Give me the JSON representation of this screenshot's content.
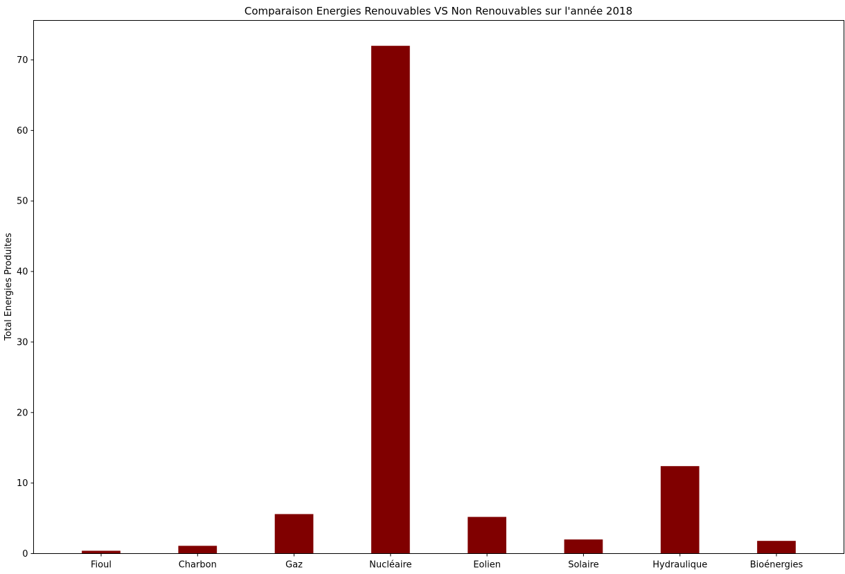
{
  "chart_data": {
    "type": "bar",
    "title": "Comparaison Energies Renouvables VS Non Renouvables sur l'année 2018",
    "xlabel": "",
    "ylabel": "Total Energies Produites",
    "categories": [
      "Fioul",
      "Charbon",
      "Gaz",
      "Nucléaire",
      "Eolien",
      "Solaire",
      "Hydraulique",
      "Bioénergies"
    ],
    "values": [
      0.4,
      1.1,
      5.6,
      72.0,
      5.2,
      2.0,
      12.4,
      1.8
    ],
    "ylim": [
      0,
      75.6
    ],
    "yticks": [
      0,
      10,
      20,
      30,
      40,
      50,
      60,
      70
    ],
    "bar_color": "#800000",
    "grid": false,
    "legend": "none"
  }
}
